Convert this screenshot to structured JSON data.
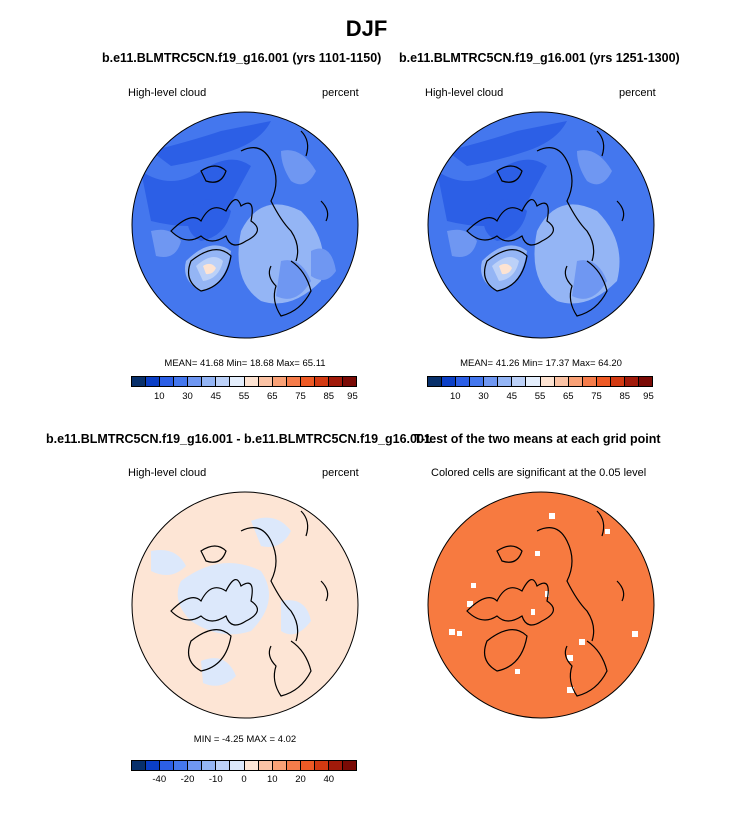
{
  "main_title": "DJF",
  "panels": [
    {
      "title": "b.e11.BLMTRC5CN.f19_g16.001 (yrs 1101-1150)",
      "left_label": "High-level cloud",
      "right_label": "percent",
      "stats": "MEAN=  41.68  Min=  18.68  Max=  65.11"
    },
    {
      "title": "b.e11.BLMTRC5CN.f19_g16.001 (yrs 1251-1300)",
      "left_label": "High-level cloud",
      "right_label": "percent",
      "stats": "MEAN=  41.26  Min=  17.37  Max=  64.20"
    },
    {
      "title": "b.e11.BLMTRC5CN.f19_g16.001 - b.e11.BLMTRC5CN.f19_g16.001",
      "left_label": "High-level cloud",
      "right_label": "percent",
      "stats": "MIN =  -4.25 MAX =   4.02"
    },
    {
      "title": "T-test of the two means at each grid point",
      "left_label": "Colored cells are significant at the 0.05 level",
      "right_label": "",
      "stats": ""
    }
  ],
  "chart_data": [
    {
      "type": "heatmap",
      "title": "b.e11.BLMTRC5CN.f19_g16.001 (yrs 1101-1150)",
      "variable": "High-level cloud",
      "units": "percent",
      "projection": "north polar stereographic",
      "mean": 41.68,
      "min": 18.68,
      "max": 65.11,
      "colorbar_ticks": [
        "10",
        "30",
        "45",
        "55",
        "65",
        "75",
        "85",
        "95"
      ]
    },
    {
      "type": "heatmap",
      "title": "b.e11.BLMTRC5CN.f19_g16.001 (yrs 1251-1300)",
      "variable": "High-level cloud",
      "units": "percent",
      "projection": "north polar stereographic",
      "mean": 41.26,
      "min": 17.37,
      "max": 64.2,
      "colorbar_ticks": [
        "10",
        "30",
        "45",
        "55",
        "65",
        "75",
        "85",
        "95"
      ]
    },
    {
      "type": "heatmap",
      "title": "b.e11.BLMTRC5CN.f19_g16.001 - b.e11.BLMTRC5CN.f19_g16.001",
      "variable": "High-level cloud",
      "units": "percent",
      "projection": "north polar stereographic",
      "min": -4.25,
      "max": 4.02,
      "colorbar_ticks": [
        "-40",
        "-20",
        "-10",
        "0",
        "10",
        "20",
        "40"
      ]
    },
    {
      "type": "heatmap",
      "title": "T-test of the two means at each grid point",
      "description_label": "Colored cells are significant at the 0.05 level",
      "significance_level": 0.05
    }
  ],
  "colors": {
    "abs_scale": [
      "#08306b",
      "#0b3fc6",
      "#2c5fe6",
      "#4477ee",
      "#6f97f2",
      "#94b5f5",
      "#bcd1f8",
      "#e4eefc",
      "#fde3d2",
      "#fbc3a5",
      "#f9a176",
      "#f57c4a",
      "#ee5a25",
      "#d33a12",
      "#a11a0a",
      "#7a0a05"
    ],
    "diff_scale": [
      "#08306b",
      "#0b3fc6",
      "#2c5fe6",
      "#4477ee",
      "#6f97f2",
      "#94b5f5",
      "#bcd1f8",
      "#dce8fb",
      "#fde5d5",
      "#fbc3a5",
      "#f9a176",
      "#f57c4a",
      "#ee5a25",
      "#d33a12",
      "#a11a0a",
      "#7a0a05"
    ],
    "ttest_fill": "#f77a40"
  }
}
